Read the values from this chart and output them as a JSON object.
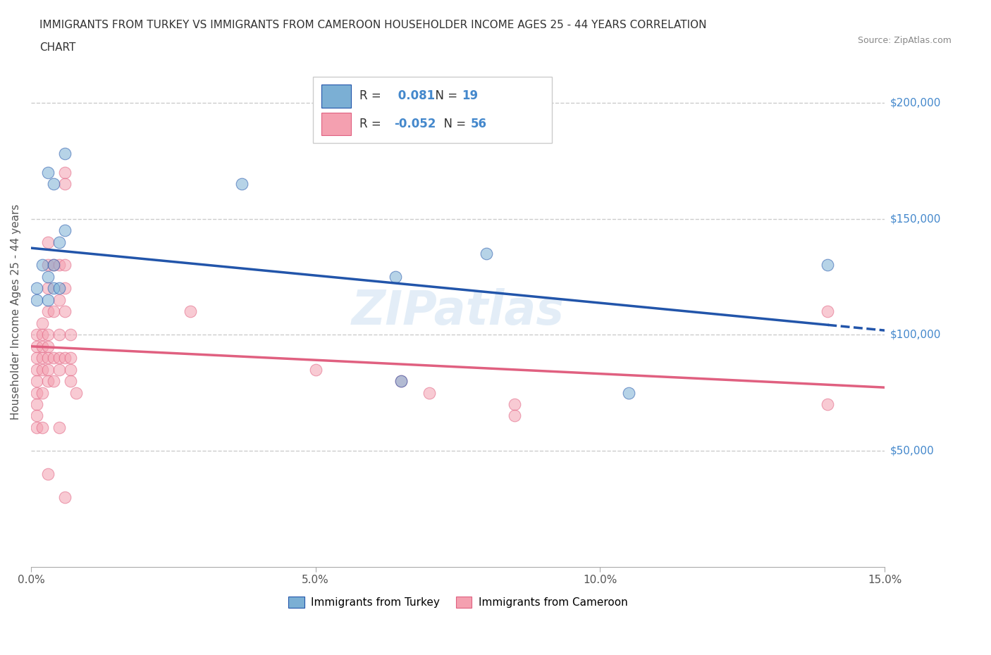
{
  "title_line1": "IMMIGRANTS FROM TURKEY VS IMMIGRANTS FROM CAMEROON HOUSEHOLDER INCOME AGES 25 - 44 YEARS CORRELATION",
  "title_line2": "CHART",
  "source_text": "Source: ZipAtlas.com",
  "xlabel": "",
  "ylabel": "Householder Income Ages 25 - 44 years",
  "xlim": [
    0.0,
    0.15
  ],
  "ylim": [
    0,
    220000
  ],
  "xtick_labels": [
    "0.0%",
    "15.0%"
  ],
  "ytick_labels": [
    "$50,000",
    "$100,000",
    "$150,000",
    "$200,000"
  ],
  "ytick_values": [
    50000,
    100000,
    150000,
    200000
  ],
  "turkey_color": "#7bafd4",
  "cameroon_color": "#f4a0b0",
  "turkey_line_color": "#2255aa",
  "cameroon_line_color": "#e06080",
  "r_turkey": 0.081,
  "n_turkey": 19,
  "r_cameroon": -0.052,
  "n_cameroon": 56,
  "turkey_x": [
    0.001,
    0.001,
    0.002,
    0.003,
    0.004,
    0.003,
    0.004,
    0.005,
    0.003,
    0.004,
    0.006,
    0.006,
    0.005,
    0.037,
    0.064,
    0.08,
    0.065,
    0.105,
    0.14
  ],
  "turkey_y": [
    120000,
    115000,
    130000,
    125000,
    120000,
    115000,
    130000,
    120000,
    170000,
    165000,
    178000,
    145000,
    140000,
    165000,
    125000,
    135000,
    80000,
    75000,
    130000
  ],
  "cameroon_x": [
    0.001,
    0.001,
    0.001,
    0.001,
    0.001,
    0.001,
    0.001,
    0.001,
    0.001,
    0.002,
    0.002,
    0.002,
    0.002,
    0.002,
    0.002,
    0.002,
    0.003,
    0.003,
    0.003,
    0.003,
    0.003,
    0.003,
    0.003,
    0.003,
    0.003,
    0.003,
    0.004,
    0.004,
    0.004,
    0.004,
    0.005,
    0.005,
    0.005,
    0.005,
    0.005,
    0.005,
    0.006,
    0.006,
    0.006,
    0.006,
    0.006,
    0.006,
    0.006,
    0.007,
    0.007,
    0.007,
    0.007,
    0.008,
    0.028,
    0.05,
    0.065,
    0.07,
    0.085,
    0.085,
    0.14,
    0.14
  ],
  "cameroon_y": [
    100000,
    95000,
    90000,
    85000,
    80000,
    75000,
    70000,
    65000,
    60000,
    105000,
    100000,
    95000,
    90000,
    85000,
    75000,
    60000,
    140000,
    130000,
    120000,
    110000,
    100000,
    95000,
    90000,
    85000,
    80000,
    40000,
    130000,
    110000,
    90000,
    80000,
    130000,
    115000,
    100000,
    90000,
    85000,
    60000,
    170000,
    165000,
    130000,
    120000,
    110000,
    90000,
    30000,
    100000,
    90000,
    85000,
    80000,
    75000,
    110000,
    85000,
    80000,
    75000,
    70000,
    65000,
    110000,
    70000
  ],
  "background_color": "#ffffff",
  "grid_color": "#cccccc",
  "marker_size": 12,
  "marker_alpha": 0.55
}
